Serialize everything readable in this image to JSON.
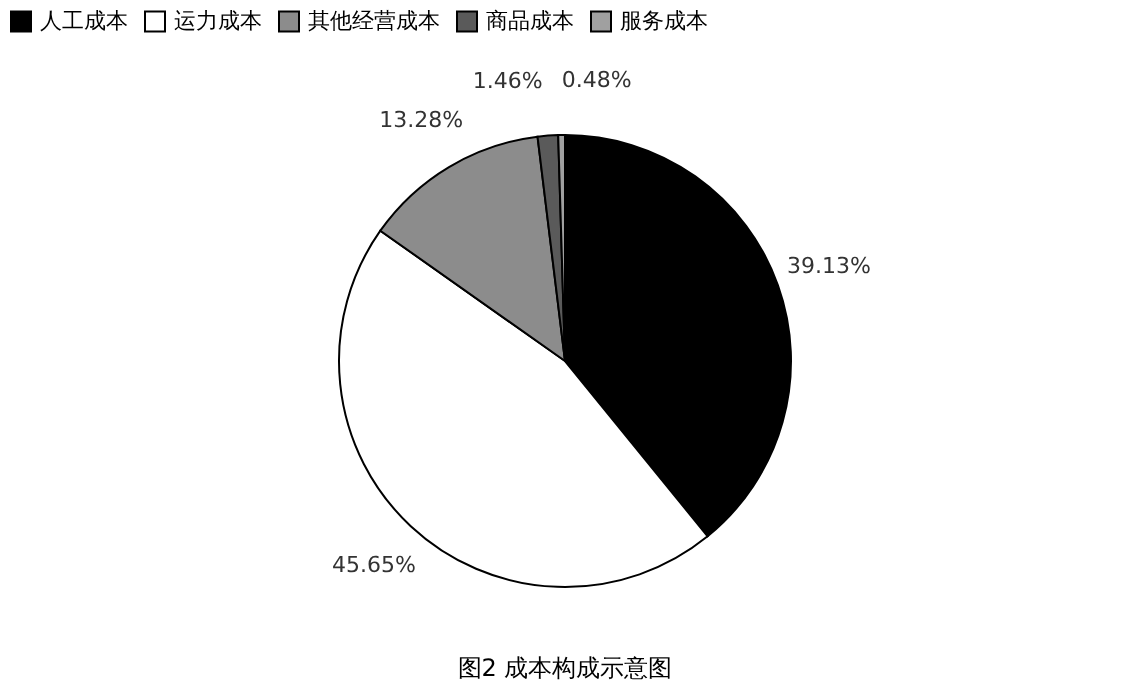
{
  "chart_data": {
    "type": "pie",
    "title": "图2 成本构成示意图",
    "categories": [
      "人工成本",
      "运力成本",
      "其他经营成本",
      "商品成本",
      "服务成本"
    ],
    "values": [
      39.13,
      45.65,
      13.28,
      1.46,
      0.48
    ],
    "value_labels": [
      "39.13%",
      "45.65%",
      "13.28%",
      "1.46%",
      "0.48%"
    ],
    "colors": [
      "#000000",
      "#ffffff",
      "#8c8c8c",
      "#5a5a5a",
      "#a0a0a0"
    ],
    "legend": "top"
  }
}
